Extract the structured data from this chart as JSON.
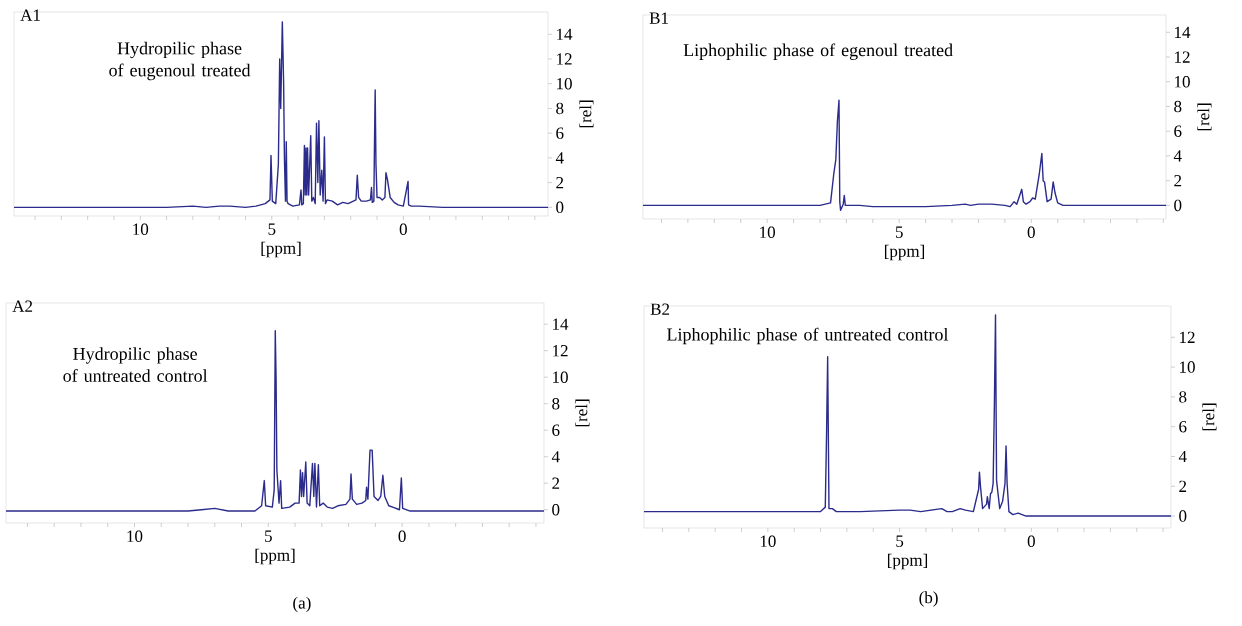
{
  "chart_data": [
    {
      "type": "line",
      "title": "A1",
      "xlabel": "[ppm]",
      "ylabel": "[rel]",
      "color": "#2b2b8c",
      "annotations": [
        "Hydropilic phase of eugenoul treated"
      ],
      "xlim": [
        14.8,
        -5.5
      ],
      "ylim": [
        -0.7,
        15.8
      ],
      "xticks": [
        {
          "value": 14,
          "label": null
        },
        {
          "value": 13,
          "label": null
        },
        {
          "value": 12,
          "label": null
        },
        {
          "value": 11,
          "label": null
        },
        10,
        {
          "value": 9,
          "label": null
        },
        {
          "value": 8,
          "label": null
        },
        {
          "value": 7,
          "label": null
        },
        {
          "value": 6,
          "label": null
        },
        5,
        {
          "value": 4,
          "label": null
        },
        {
          "value": 3,
          "label": null
        },
        {
          "value": 2,
          "label": null
        },
        {
          "value": 1,
          "label": null
        },
        0,
        {
          "value": -1,
          "label": null
        },
        {
          "value": -2,
          "label": null
        },
        {
          "value": -3,
          "label": null
        },
        {
          "value": -4,
          "label": null
        },
        {
          "value": -5,
          "label": null
        }
      ],
      "yticks": [
        0,
        2,
        4,
        6,
        8,
        10,
        12,
        14
      ],
      "x": [
        14.8,
        9,
        8,
        7.5,
        7,
        6.6,
        6,
        5.6,
        5.25,
        5.07,
        5.03,
        4.98,
        4.85,
        4.75,
        4.7,
        4.66,
        4.6,
        4.55,
        4.52,
        4.48,
        4.45,
        4.42,
        4.38,
        4.2,
        3.95,
        3.89,
        3.86,
        3.8,
        3.76,
        3.73,
        3.7,
        3.67,
        3.64,
        3.6,
        3.52,
        3.48,
        3.42,
        3.35,
        3.3,
        3.25,
        3.21,
        3.16,
        3.1,
        3.05,
        3.0,
        2.96,
        2.9,
        2.7,
        2.5,
        2.3,
        2.1,
        1.9,
        1.8,
        1.75,
        1.7,
        1.6,
        1.4,
        1.25,
        1.21,
        1.18,
        1.12,
        1.1,
        1.07,
        1.04,
        1.0,
        0.9,
        0.8,
        0.7,
        0.66,
        0.6,
        0.5,
        0.35,
        0.2,
        0,
        -0.18,
        -0.2,
        -0.3,
        -0.6,
        -1.5,
        -5.5
      ],
      "values": [
        0,
        0,
        0.1,
        0,
        0.1,
        0.1,
        0,
        0.1,
        0.3,
        0.6,
        4.2,
        0.5,
        0.3,
        3.5,
        12,
        8,
        15,
        10,
        4,
        0.5,
        5.3,
        0.5,
        0.3,
        0.1,
        0.2,
        1.4,
        0.2,
        0.3,
        5,
        1,
        4.8,
        1,
        4.8,
        1,
        5.8,
        0.5,
        0.8,
        0.3,
        6.8,
        2,
        7,
        1,
        3,
        0.5,
        5.7,
        0.3,
        0.6,
        0.5,
        0.2,
        0.4,
        0.3,
        0.5,
        0.6,
        2.6,
        0.8,
        0.5,
        0.5,
        0.6,
        1.6,
        0.4,
        0.5,
        4.5,
        9.5,
        3.5,
        0.8,
        0.8,
        0.6,
        0.8,
        2.8,
        2.2,
        0.8,
        0.4,
        0.2,
        0.1,
        2.1,
        0.2,
        0.1,
        0.1,
        0,
        0
      ]
    },
    {
      "type": "line",
      "title": "B1",
      "xlabel": "[ppm]",
      "ylabel": "[rel]",
      "color": "#2b2b8c",
      "annotations": [
        "Liphophilic phase of egenoul treated"
      ],
      "xlim": [
        14.7,
        -5.1
      ],
      "ylim": [
        -1.1,
        15.4
      ],
      "xticks": [
        {
          "value": 14,
          "label": null
        },
        {
          "value": 13,
          "label": null
        },
        {
          "value": 12,
          "label": null
        },
        {
          "value": 11,
          "label": null
        },
        10,
        {
          "value": 9,
          "label": null
        },
        {
          "value": 8,
          "label": null
        },
        {
          "value": 7,
          "label": null
        },
        {
          "value": 6,
          "label": null
        },
        5,
        {
          "value": 4,
          "label": null
        },
        {
          "value": 3,
          "label": null
        },
        {
          "value": 2,
          "label": null
        },
        {
          "value": 1,
          "label": null
        },
        0,
        {
          "value": -1,
          "label": null
        },
        {
          "value": -2,
          "label": null
        },
        {
          "value": -3,
          "label": null
        },
        {
          "value": -4,
          "label": null
        },
        {
          "value": -5,
          "label": null
        }
      ],
      "yticks": [
        0,
        2,
        4,
        6,
        8,
        10,
        12,
        14
      ],
      "x": [
        14.7,
        10,
        8,
        7.6,
        7.48,
        7.4,
        7.34,
        7.28,
        7.25,
        7.22,
        7.12,
        7.08,
        7.04,
        6.5,
        6,
        4,
        3,
        2.5,
        2.3,
        2,
        1.5,
        1,
        0.8,
        0.65,
        0.55,
        0.36,
        0.3,
        0.2,
        0.05,
        -0.05,
        -0.15,
        -0.3,
        -0.4,
        -0.45,
        -0.5,
        -0.6,
        -0.75,
        -0.83,
        -0.9,
        -1,
        -1.2,
        -5.1
      ],
      "values": [
        0,
        0,
        0,
        0.2,
        2.5,
        3.7,
        6.8,
        8.5,
        0.3,
        -0.4,
        0.1,
        0.8,
        0,
        0,
        -0.1,
        -0.1,
        0,
        0.1,
        0,
        0.1,
        0.1,
        0,
        -0.1,
        0.3,
        0.1,
        1.3,
        0.3,
        0.1,
        0.3,
        0.6,
        0.5,
        2.5,
        4.2,
        2,
        1.9,
        0.3,
        0.5,
        1.9,
        1,
        0.2,
        0,
        0
      ]
    },
    {
      "type": "line",
      "title": "A2",
      "xlabel": "[ppm]",
      "ylabel": "[rel]",
      "color": "#2b2b8c",
      "annotations": [
        "Hydropilic phase of untreated control",
        "(a)"
      ],
      "xlim": [
        14.8,
        -5.3
      ],
      "ylim": [
        -1.0,
        15.6
      ],
      "xticks": [
        {
          "value": 14,
          "label": null
        },
        {
          "value": 13,
          "label": null
        },
        {
          "value": 12,
          "label": null
        },
        {
          "value": 11,
          "label": null
        },
        10,
        {
          "value": 9,
          "label": null
        },
        {
          "value": 8,
          "label": null
        },
        {
          "value": 7,
          "label": null
        },
        {
          "value": 6,
          "label": null
        },
        5,
        {
          "value": 4,
          "label": null
        },
        {
          "value": 3,
          "label": null
        },
        {
          "value": 2,
          "label": null
        },
        {
          "value": 1,
          "label": null
        },
        0,
        {
          "value": -1,
          "label": null
        },
        {
          "value": -2,
          "label": null
        },
        {
          "value": -3,
          "label": null
        },
        {
          "value": -4,
          "label": null
        },
        {
          "value": -5,
          "label": null
        }
      ],
      "yticks": [
        0,
        2,
        4,
        6,
        8,
        10,
        12,
        14
      ],
      "x": [
        14.8,
        8,
        7.5,
        7,
        6.5,
        5.5,
        5.25,
        5.15,
        5.1,
        4.85,
        4.78,
        4.74,
        4.71,
        4.68,
        4.6,
        4.54,
        4.5,
        4.2,
        4.0,
        3.85,
        3.8,
        3.76,
        3.72,
        3.68,
        3.6,
        3.55,
        3.45,
        3.35,
        3.3,
        3.26,
        3.2,
        3.13,
        3.08,
        2.95,
        2.8,
        2.6,
        2.4,
        2.1,
        1.95,
        1.91,
        1.86,
        1.7,
        1.5,
        1.36,
        1.33,
        1.28,
        1.2,
        1.12,
        1.05,
        0.9,
        0.8,
        0.72,
        0.65,
        0.5,
        0.35,
        0.1,
        0.03,
        -0.02,
        -0.3,
        -3,
        -5.3
      ],
      "values": [
        -0.1,
        -0.1,
        0,
        0.1,
        -0.1,
        -0.1,
        0.3,
        2.2,
        0.3,
        0.2,
        1.5,
        13.5,
        10,
        3,
        0.5,
        2.2,
        0.1,
        0.2,
        0.5,
        0.5,
        3,
        1,
        2.8,
        1,
        3.6,
        0.5,
        0.3,
        3.5,
        1,
        3.5,
        0.2,
        3.4,
        0.3,
        0.5,
        0.2,
        0.1,
        0.3,
        0.4,
        0.8,
        2.7,
        0.8,
        0.4,
        0.5,
        0.7,
        1.7,
        0.8,
        4.5,
        4.5,
        1,
        0.7,
        1,
        2.6,
        1,
        0.3,
        0.2,
        0,
        2.4,
        0.1,
        -0.1,
        -0.1,
        -0.1
      ]
    },
    {
      "type": "line",
      "title": "B2",
      "xlabel": "[ppm]",
      "ylabel": "[rel]",
      "color": "#2b2b8c",
      "annotations": [
        "Liphophilic phase of untreated control",
        "(b)"
      ],
      "xlim": [
        14.7,
        -5.3
      ],
      "ylim": [
        -0.8,
        14.1
      ],
      "xticks": [
        {
          "value": 14,
          "label": null
        },
        {
          "value": 13,
          "label": null
        },
        {
          "value": 12,
          "label": null
        },
        {
          "value": 11,
          "label": null
        },
        10,
        {
          "value": 9,
          "label": null
        },
        {
          "value": 8,
          "label": null
        },
        {
          "value": 7,
          "label": null
        },
        {
          "value": 6,
          "label": null
        },
        5,
        {
          "value": 4,
          "label": null
        },
        {
          "value": 3,
          "label": null
        },
        {
          "value": 2,
          "label": null
        },
        {
          "value": 1,
          "label": null
        },
        0,
        {
          "value": -1,
          "label": null
        },
        {
          "value": -2,
          "label": null
        },
        {
          "value": -3,
          "label": null
        },
        {
          "value": -4,
          "label": null
        },
        {
          "value": -5,
          "label": null
        }
      ],
      "yticks": [
        0,
        2,
        4,
        6,
        8,
        10,
        12
      ],
      "x": [
        14.7,
        9,
        8.5,
        8,
        7.82,
        7.77,
        7.73,
        7.68,
        7.55,
        7.4,
        6.5,
        5,
        4.6,
        4.2,
        3.4,
        3.2,
        3,
        2.7,
        2.5,
        2.2,
        2.0,
        1.97,
        1.93,
        1.85,
        1.7,
        1.67,
        1.6,
        1.55,
        1.5,
        1.45,
        1.4,
        1.36,
        1.32,
        1.2,
        1.09,
        1.0,
        0.96,
        0.92,
        0.85,
        0.7,
        0.5,
        0.2,
        -5.3
      ],
      "values": [
        0.3,
        0.3,
        0.3,
        0.3,
        0.6,
        5.7,
        10.7,
        0.5,
        0.5,
        0.3,
        0.3,
        0.4,
        0.4,
        0.3,
        0.5,
        0.3,
        0.3,
        0.5,
        0.4,
        0.3,
        1.8,
        2.95,
        2,
        0.5,
        0.8,
        1.3,
        0.5,
        1.5,
        1.6,
        2.2,
        7.8,
        13.5,
        2.4,
        0.5,
        1,
        2.2,
        4.7,
        2.2,
        0.3,
        0.1,
        0.2,
        0,
        0
      ]
    }
  ]
}
